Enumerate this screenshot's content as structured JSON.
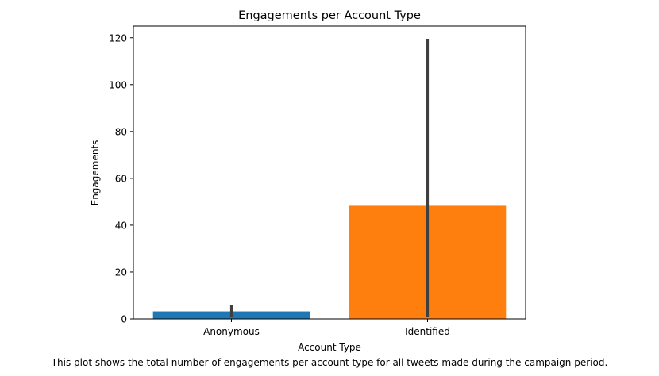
{
  "chart_data": {
    "type": "bar",
    "title": "Engagements per Account Type",
    "xlabel": "Account Type",
    "ylabel": "Engagements",
    "caption": "This plot shows the total number of engagements per account type for all tweets made during the campaign period.",
    "categories": [
      "Anonymous",
      "Identified"
    ],
    "values": [
      3.2,
      48.3
    ],
    "error_low": [
      1.0,
      1.0
    ],
    "error_high": [
      5.8,
      119.6
    ],
    "colors": [
      "#1f77b4",
      "#ff7f0e"
    ],
    "error_color": "#3f3f3f",
    "ylim": [
      0,
      125
    ],
    "yticks": [
      0,
      20,
      40,
      60,
      80,
      100,
      120
    ],
    "grid": false
  }
}
